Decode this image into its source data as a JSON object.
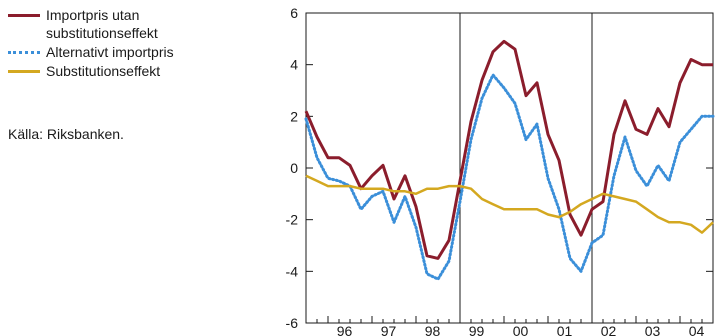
{
  "legend": {
    "items": [
      {
        "label": "Importpris utan substitutionseffekt",
        "color": "#8b1d2c",
        "dash": "solid"
      },
      {
        "label": "Alternativt importpris",
        "color": "#3b8fd9",
        "dash": "dotted"
      },
      {
        "label": "Substitutionseffekt",
        "color": "#d4a820",
        "dash": "solid"
      }
    ]
  },
  "source": "Källa: Riksbanken.",
  "chart_data": {
    "type": "line",
    "title": "",
    "xlabel": "",
    "ylabel": "",
    "ylim": [
      -6,
      6
    ],
    "yticks": [
      -6,
      -4,
      -2,
      0,
      2,
      4,
      6
    ],
    "xlim": [
      1995.5,
      2004.75
    ],
    "x_tick_labels": [
      "96",
      "97",
      "98",
      "99",
      "00",
      "01",
      "02",
      "03",
      "04"
    ],
    "x_tick_positions": [
      1996,
      1997,
      1998,
      1999,
      2000,
      2001,
      2002,
      2003,
      2004
    ],
    "year_dividers": [
      1999,
      2002
    ],
    "grid": false,
    "legend_position": "left",
    "x": [
      1995.5,
      1995.75,
      1996.0,
      1996.25,
      1996.5,
      1996.75,
      1997.0,
      1997.25,
      1997.5,
      1997.75,
      1998.0,
      1998.25,
      1998.5,
      1998.75,
      1999.0,
      1999.25,
      1999.5,
      1999.75,
      2000.0,
      2000.25,
      2000.5,
      2000.75,
      2001.0,
      2001.25,
      2001.5,
      2001.75,
      2002.0,
      2002.25,
      2002.5,
      2002.75,
      2003.0,
      2003.25,
      2003.5,
      2003.75,
      2004.0,
      2004.25,
      2004.5,
      2004.75
    ],
    "series": [
      {
        "name": "Importpris utan substitutionseffekt",
        "color": "#8b1d2c",
        "values": [
          2.2,
          1.2,
          0.4,
          0.4,
          0.1,
          -0.8,
          -0.3,
          0.1,
          -1.2,
          -0.3,
          -1.5,
          -3.4,
          -3.5,
          -2.8,
          -0.5,
          1.8,
          3.4,
          4.5,
          4.9,
          4.6,
          2.8,
          3.3,
          1.3,
          0.3,
          -1.8,
          -2.6,
          -1.6,
          -1.3,
          1.3,
          2.6,
          1.5,
          1.3,
          2.3,
          1.6,
          3.3,
          4.2,
          4.0,
          4.0
        ]
      },
      {
        "name": "Alternativt importpris",
        "color": "#3b8fd9",
        "values": [
          1.9,
          0.4,
          -0.4,
          -0.5,
          -0.7,
          -1.6,
          -1.1,
          -0.9,
          -2.1,
          -1.1,
          -2.3,
          -4.1,
          -4.3,
          -3.6,
          -1.3,
          1.1,
          2.7,
          3.6,
          3.1,
          2.5,
          1.1,
          1.7,
          -0.4,
          -1.6,
          -3.5,
          -4.0,
          -2.9,
          -2.6,
          -0.3,
          1.2,
          -0.1,
          -0.7,
          0.1,
          -0.5,
          1.0,
          1.5,
          2.0,
          2.0
        ]
      },
      {
        "name": "Substitutionseffekt",
        "color": "#d4a820",
        "values": [
          -0.3,
          -0.5,
          -0.7,
          -0.7,
          -0.7,
          -0.8,
          -0.8,
          -0.8,
          -0.9,
          -0.9,
          -1.0,
          -0.8,
          -0.8,
          -0.7,
          -0.7,
          -0.8,
          -1.2,
          -1.4,
          -1.6,
          -1.6,
          -1.6,
          -1.6,
          -1.8,
          -1.9,
          -1.7,
          -1.4,
          -1.2,
          -1.0,
          -1.1,
          -1.2,
          -1.3,
          -1.6,
          -1.9,
          -2.1,
          -2.1,
          -2.2,
          -2.5,
          -2.1
        ]
      }
    ]
  }
}
